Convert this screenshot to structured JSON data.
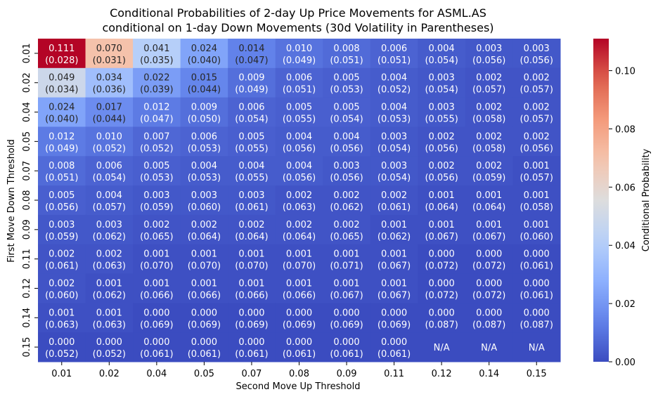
{
  "chart_data": {
    "type": "heatmap",
    "title_line1": "Conditional Probabilities of 2-day Up Price Movements for ASML.AS",
    "title_line2": "conditional on 1-day Down Movements (30d Volatility in Parentheses)",
    "xlabel": "Second Move Up Threshold",
    "ylabel": "First Move Down Threshold",
    "x_categories": [
      "0.01",
      "0.02",
      "0.04",
      "0.05",
      "0.07",
      "0.08",
      "0.09",
      "0.11",
      "0.12",
      "0.14",
      "0.15"
    ],
    "y_categories": [
      "0.01",
      "0.02",
      "0.04",
      "0.05",
      "0.07",
      "0.08",
      "0.09",
      "0.11",
      "0.12",
      "0.14",
      "0.15"
    ],
    "values": [
      [
        0.111,
        0.07,
        0.041,
        0.024,
        0.014,
        0.01,
        0.008,
        0.006,
        0.004,
        0.003,
        0.003
      ],
      [
        0.049,
        0.034,
        0.022,
        0.015,
        0.009,
        0.006,
        0.005,
        0.004,
        0.003,
        0.002,
        0.002
      ],
      [
        0.024,
        0.017,
        0.012,
        0.009,
        0.006,
        0.005,
        0.005,
        0.004,
        0.003,
        0.002,
        0.002
      ],
      [
        0.012,
        0.01,
        0.007,
        0.006,
        0.005,
        0.004,
        0.004,
        0.003,
        0.002,
        0.002,
        0.002
      ],
      [
        0.008,
        0.006,
        0.005,
        0.004,
        0.004,
        0.004,
        0.003,
        0.003,
        0.002,
        0.002,
        0.001
      ],
      [
        0.005,
        0.004,
        0.003,
        0.003,
        0.003,
        0.002,
        0.002,
        0.002,
        0.001,
        0.001,
        0.001
      ],
      [
        0.003,
        0.003,
        0.002,
        0.002,
        0.002,
        0.002,
        0.002,
        0.001,
        0.001,
        0.001,
        0.001
      ],
      [
        0.002,
        0.002,
        0.001,
        0.001,
        0.001,
        0.001,
        0.001,
        0.001,
        0.0,
        0.0,
        0.0
      ],
      [
        0.002,
        0.001,
        0.001,
        0.001,
        0.001,
        0.001,
        0.001,
        0.001,
        0.0,
        0.0,
        0.0
      ],
      [
        0.001,
        0.001,
        0.0,
        0.0,
        0.0,
        0.0,
        0.0,
        0.0,
        0.0,
        0.0,
        0.0
      ],
      [
        0.0,
        0.0,
        0.0,
        0.0,
        0.0,
        0.0,
        0.0,
        0.0,
        null,
        null,
        null
      ]
    ],
    "volatility": [
      [
        "0.028",
        "0.031",
        "0.035",
        "0.040",
        "0.047",
        "0.049",
        "0.051",
        "0.051",
        "0.054",
        "0.056",
        "0.056"
      ],
      [
        "0.034",
        "0.036",
        "0.039",
        "0.044",
        "0.049",
        "0.051",
        "0.053",
        "0.052",
        "0.054",
        "0.057",
        "0.057"
      ],
      [
        "0.040",
        "0.044",
        "0.047",
        "0.050",
        "0.054",
        "0.055",
        "0.054",
        "0.053",
        "0.055",
        "0.058",
        "0.057"
      ],
      [
        "0.049",
        "0.052",
        "0.052",
        "0.053",
        "0.055",
        "0.056",
        "0.056",
        "0.054",
        "0.056",
        "0.058",
        "0.056"
      ],
      [
        "0.051",
        "0.054",
        "0.053",
        "0.053",
        "0.055",
        "0.056",
        "0.056",
        "0.054",
        "0.056",
        "0.059",
        "0.057"
      ],
      [
        "0.056",
        "0.057",
        "0.059",
        "0.060",
        "0.061",
        "0.063",
        "0.062",
        "0.061",
        "0.064",
        "0.064",
        "0.058"
      ],
      [
        "0.059",
        "0.062",
        "0.065",
        "0.064",
        "0.064",
        "0.064",
        "0.065",
        "0.062",
        "0.067",
        "0.067",
        "0.060"
      ],
      [
        "0.061",
        "0.063",
        "0.070",
        "0.070",
        "0.070",
        "0.070",
        "0.071",
        "0.067",
        "0.072",
        "0.072",
        "0.061"
      ],
      [
        "0.060",
        "0.062",
        "0.066",
        "0.066",
        "0.066",
        "0.066",
        "0.067",
        "0.067",
        "0.072",
        "0.072",
        "0.061"
      ],
      [
        "0.063",
        "0.063",
        "0.069",
        "0.069",
        "0.069",
        "0.069",
        "0.069",
        "0.069",
        "0.087",
        "0.087",
        "0.087"
      ],
      [
        "0.052",
        "0.052",
        "0.061",
        "0.061",
        "0.061",
        "0.061",
        "0.061",
        "0.061",
        null,
        null,
        null
      ]
    ],
    "na_label": "N/A",
    "colorbar": {
      "label": "Conditional Probability",
      "vmin": 0.0,
      "vmax": 0.111,
      "ticks": [
        0.0,
        0.02,
        0.04,
        0.06,
        0.08,
        0.1
      ],
      "tick_labels": [
        "0.00",
        "0.02",
        "0.04",
        "0.06",
        "0.08",
        "0.10"
      ],
      "colormap": "coolwarm"
    },
    "na_color": "#3b4cc0"
  }
}
